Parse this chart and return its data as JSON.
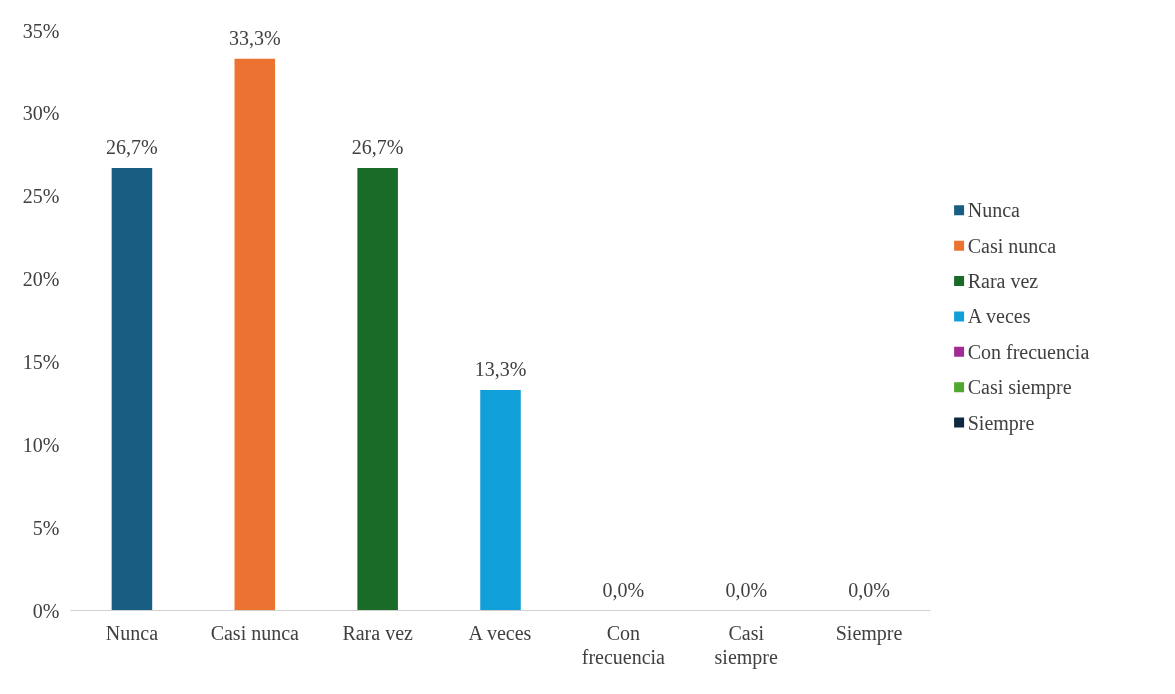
{
  "chart_data": {
    "type": "bar",
    "categories": [
      "Nunca",
      "Casi nunca",
      "Rara vez",
      "A veces",
      "Con frecuencia",
      "Casi siempre",
      "Siempre"
    ],
    "series": [
      {
        "name": "Nunca",
        "color": "#175e82",
        "values": [
          26.7,
          null,
          null,
          null,
          null,
          null,
          null
        ],
        "value_labels": [
          "26,7%",
          null,
          null,
          null,
          null,
          null,
          null
        ]
      },
      {
        "name": "Casi nunca",
        "color": "#ec7232",
        "values": [
          null,
          33.3,
          null,
          null,
          null,
          null,
          null
        ],
        "value_labels": [
          null,
          "33,3%",
          null,
          null,
          null,
          null,
          null
        ]
      },
      {
        "name": "Rara vez",
        "color": "#1a6b27",
        "values": [
          null,
          null,
          26.7,
          null,
          null,
          null,
          null
        ],
        "value_labels": [
          null,
          null,
          "26,7%",
          null,
          null,
          null,
          null
        ]
      },
      {
        "name": "A veces",
        "color": "#119fd9",
        "values": [
          null,
          null,
          null,
          13.3,
          null,
          null,
          null
        ],
        "value_labels": [
          null,
          null,
          null,
          "13,3%",
          null,
          null,
          null
        ]
      },
      {
        "name": "Con frecuencia",
        "color": "#a02b93",
        "values": [
          null,
          null,
          null,
          null,
          0.0,
          null,
          null
        ],
        "value_labels": [
          null,
          null,
          null,
          null,
          "0,0%",
          null,
          null
        ]
      },
      {
        "name": "Casi siempre",
        "color": "#4ea72e",
        "values": [
          null,
          null,
          null,
          null,
          null,
          0.0,
          null
        ],
        "value_labels": [
          null,
          null,
          null,
          null,
          null,
          "0,0%",
          null
        ]
      },
      {
        "name": "Siempre",
        "color": "#0e2841",
        "values": [
          null,
          null,
          null,
          null,
          null,
          null,
          0.0
        ],
        "value_labels": [
          null,
          null,
          null,
          null,
          null,
          null,
          "0,0%"
        ]
      }
    ],
    "stacked": true,
    "ylim": [
      0,
      35
    ],
    "yticks": [
      {
        "value": 0,
        "label": "0%"
      },
      {
        "value": 5,
        "label": "5%"
      },
      {
        "value": 10,
        "label": "10%"
      },
      {
        "value": 15,
        "label": "15%"
      },
      {
        "value": 20,
        "label": "20%"
      },
      {
        "value": 25,
        "label": "25%"
      },
      {
        "value": 30,
        "label": "30%"
      },
      {
        "value": 35,
        "label": "35%"
      }
    ],
    "grid": false,
    "legend": "right"
  }
}
